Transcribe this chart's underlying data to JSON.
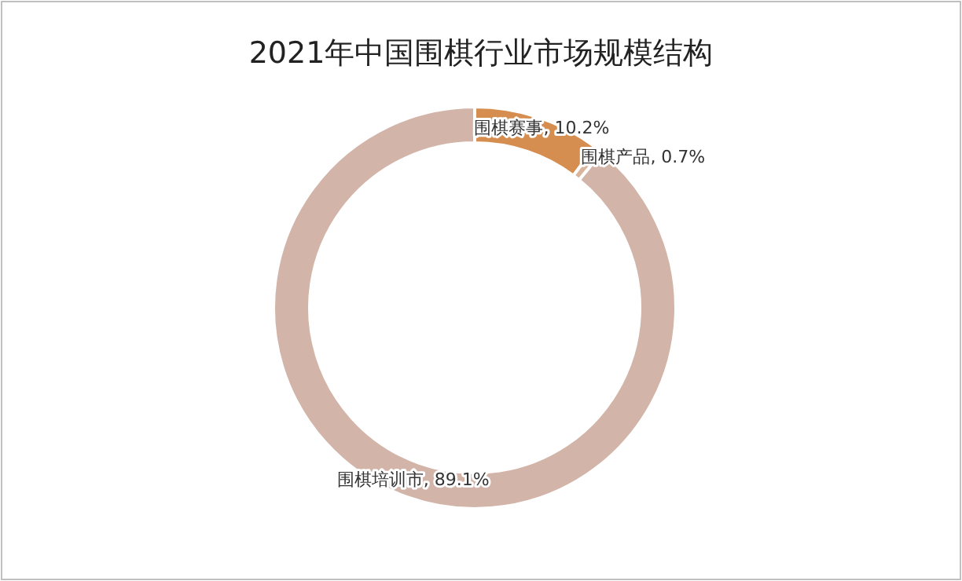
{
  "chart_data": {
    "type": "donut",
    "title": "2021年中国围棋行业市场规模结构",
    "categories": [
      "围棋赛事",
      "围棋产品",
      "围棋培训市"
    ],
    "values": [
      10.2,
      0.7,
      89.1
    ],
    "colors": [
      "#d58e4f",
      "#d9b59c",
      "#d2b4a9"
    ],
    "value_labels": [
      ", 10.2%",
      ", 0.7%",
      ", 89.1%"
    ]
  }
}
